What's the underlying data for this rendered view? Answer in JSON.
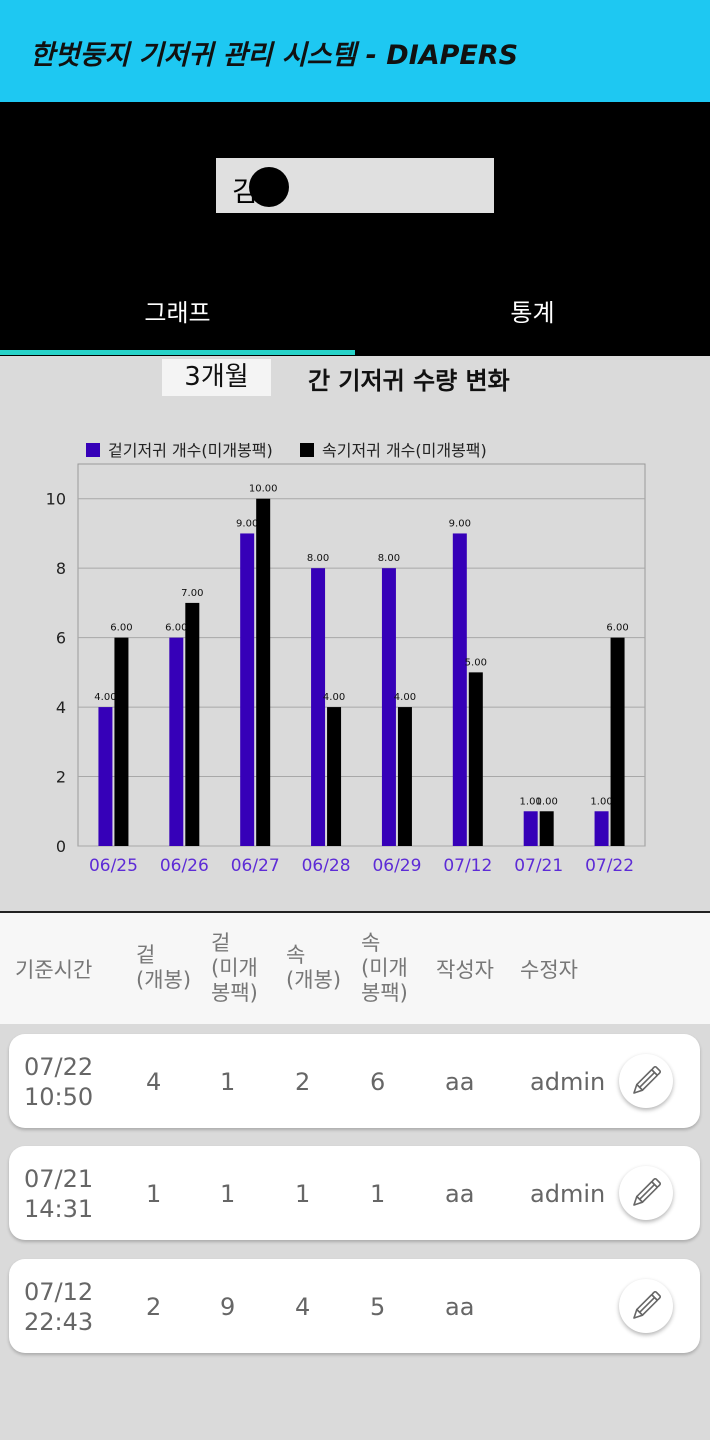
{
  "appbar": {
    "title": "한벗둥지 기저귀 관리 시스템 - DIAPERS"
  },
  "resident": {
    "name": "김규"
  },
  "tabs": [
    {
      "label": "그래프",
      "active": true
    },
    {
      "label": "통계",
      "active": false
    }
  ],
  "colors": {
    "appbar": "#1ec8f2",
    "tab_indicator": "#28d2c8",
    "series_outer": "#3600b8",
    "series_inner": "#000000",
    "category_label": "#5d2bd6"
  },
  "period": {
    "value": "3개월",
    "caption": "간 기저귀 수량 변화"
  },
  "chart_data": {
    "type": "bar",
    "categories": [
      "06/25",
      "06/26",
      "06/27",
      "06/28",
      "06/29",
      "07/12",
      "07/21",
      "07/22"
    ],
    "series": [
      {
        "name": "겉기저귀 개수(미개봉팩)",
        "values": [
          4,
          6,
          9,
          8,
          8,
          9,
          1,
          1
        ]
      },
      {
        "name": "속기저귀 개수(미개봉팩)",
        "values": [
          6,
          7,
          10,
          4,
          4,
          5,
          1,
          6
        ]
      }
    ],
    "y_ticks": [
      "0",
      "2",
      "4",
      "6",
      "8",
      "10"
    ],
    "ylim": [
      0,
      11
    ],
    "grid": true,
    "legend_position": "top-left"
  },
  "table": {
    "headers": [
      "기준시간",
      "겉\n(개봉)",
      "겉\n(미개\n봉팩)",
      "속\n(개봉)",
      "속\n(미개\n봉팩)",
      "작성자",
      "수정자"
    ],
    "rows": [
      {
        "time": "07/22\n10:50",
        "outer_open": "4",
        "outer_unopened": "1",
        "inner_open": "2",
        "inner_unopened": "6",
        "author": "aa",
        "editor": "admin"
      },
      {
        "time": "07/21\n14:31",
        "outer_open": "1",
        "outer_unopened": "1",
        "inner_open": "1",
        "inner_unopened": "1",
        "author": "aa",
        "editor": "admin"
      },
      {
        "time": "07/12\n22:43",
        "outer_open": "2",
        "outer_unopened": "9",
        "inner_open": "4",
        "inner_unopened": "5",
        "author": "aa",
        "editor": ""
      }
    ],
    "edit_icon": "pencil-icon"
  }
}
